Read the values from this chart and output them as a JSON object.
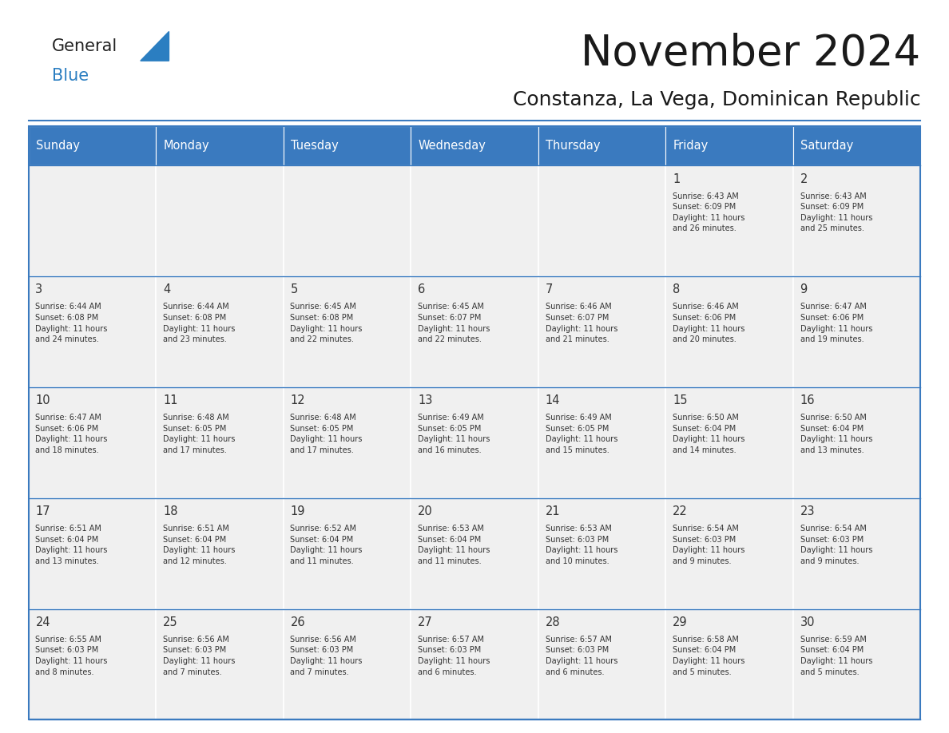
{
  "title": "November 2024",
  "subtitle": "Constanza, La Vega, Dominican Republic",
  "header_bg_color": "#3a7abf",
  "header_text_color": "#ffffff",
  "cell_bg_color": "#f0f0f0",
  "cell_text_color": "#333333",
  "day_num_color": "#333333",
  "grid_line_color": "#3a7abf",
  "background_color": "#ffffff",
  "days_of_week": [
    "Sunday",
    "Monday",
    "Tuesday",
    "Wednesday",
    "Thursday",
    "Friday",
    "Saturday"
  ],
  "logo_general_color": "#222222",
  "logo_blue_color": "#2b7ec1",
  "logo_triangle_color": "#2b7ec1",
  "weeks": [
    [
      {
        "day": "",
        "info": ""
      },
      {
        "day": "",
        "info": ""
      },
      {
        "day": "",
        "info": ""
      },
      {
        "day": "",
        "info": ""
      },
      {
        "day": "",
        "info": ""
      },
      {
        "day": "1",
        "info": "Sunrise: 6:43 AM\nSunset: 6:09 PM\nDaylight: 11 hours\nand 26 minutes."
      },
      {
        "day": "2",
        "info": "Sunrise: 6:43 AM\nSunset: 6:09 PM\nDaylight: 11 hours\nand 25 minutes."
      }
    ],
    [
      {
        "day": "3",
        "info": "Sunrise: 6:44 AM\nSunset: 6:08 PM\nDaylight: 11 hours\nand 24 minutes."
      },
      {
        "day": "4",
        "info": "Sunrise: 6:44 AM\nSunset: 6:08 PM\nDaylight: 11 hours\nand 23 minutes."
      },
      {
        "day": "5",
        "info": "Sunrise: 6:45 AM\nSunset: 6:08 PM\nDaylight: 11 hours\nand 22 minutes."
      },
      {
        "day": "6",
        "info": "Sunrise: 6:45 AM\nSunset: 6:07 PM\nDaylight: 11 hours\nand 22 minutes."
      },
      {
        "day": "7",
        "info": "Sunrise: 6:46 AM\nSunset: 6:07 PM\nDaylight: 11 hours\nand 21 minutes."
      },
      {
        "day": "8",
        "info": "Sunrise: 6:46 AM\nSunset: 6:06 PM\nDaylight: 11 hours\nand 20 minutes."
      },
      {
        "day": "9",
        "info": "Sunrise: 6:47 AM\nSunset: 6:06 PM\nDaylight: 11 hours\nand 19 minutes."
      }
    ],
    [
      {
        "day": "10",
        "info": "Sunrise: 6:47 AM\nSunset: 6:06 PM\nDaylight: 11 hours\nand 18 minutes."
      },
      {
        "day": "11",
        "info": "Sunrise: 6:48 AM\nSunset: 6:05 PM\nDaylight: 11 hours\nand 17 minutes."
      },
      {
        "day": "12",
        "info": "Sunrise: 6:48 AM\nSunset: 6:05 PM\nDaylight: 11 hours\nand 17 minutes."
      },
      {
        "day": "13",
        "info": "Sunrise: 6:49 AM\nSunset: 6:05 PM\nDaylight: 11 hours\nand 16 minutes."
      },
      {
        "day": "14",
        "info": "Sunrise: 6:49 AM\nSunset: 6:05 PM\nDaylight: 11 hours\nand 15 minutes."
      },
      {
        "day": "15",
        "info": "Sunrise: 6:50 AM\nSunset: 6:04 PM\nDaylight: 11 hours\nand 14 minutes."
      },
      {
        "day": "16",
        "info": "Sunrise: 6:50 AM\nSunset: 6:04 PM\nDaylight: 11 hours\nand 13 minutes."
      }
    ],
    [
      {
        "day": "17",
        "info": "Sunrise: 6:51 AM\nSunset: 6:04 PM\nDaylight: 11 hours\nand 13 minutes."
      },
      {
        "day": "18",
        "info": "Sunrise: 6:51 AM\nSunset: 6:04 PM\nDaylight: 11 hours\nand 12 minutes."
      },
      {
        "day": "19",
        "info": "Sunrise: 6:52 AM\nSunset: 6:04 PM\nDaylight: 11 hours\nand 11 minutes."
      },
      {
        "day": "20",
        "info": "Sunrise: 6:53 AM\nSunset: 6:04 PM\nDaylight: 11 hours\nand 11 minutes."
      },
      {
        "day": "21",
        "info": "Sunrise: 6:53 AM\nSunset: 6:03 PM\nDaylight: 11 hours\nand 10 minutes."
      },
      {
        "day": "22",
        "info": "Sunrise: 6:54 AM\nSunset: 6:03 PM\nDaylight: 11 hours\nand 9 minutes."
      },
      {
        "day": "23",
        "info": "Sunrise: 6:54 AM\nSunset: 6:03 PM\nDaylight: 11 hours\nand 9 minutes."
      }
    ],
    [
      {
        "day": "24",
        "info": "Sunrise: 6:55 AM\nSunset: 6:03 PM\nDaylight: 11 hours\nand 8 minutes."
      },
      {
        "day": "25",
        "info": "Sunrise: 6:56 AM\nSunset: 6:03 PM\nDaylight: 11 hours\nand 7 minutes."
      },
      {
        "day": "26",
        "info": "Sunrise: 6:56 AM\nSunset: 6:03 PM\nDaylight: 11 hours\nand 7 minutes."
      },
      {
        "day": "27",
        "info": "Sunrise: 6:57 AM\nSunset: 6:03 PM\nDaylight: 11 hours\nand 6 minutes."
      },
      {
        "day": "28",
        "info": "Sunrise: 6:57 AM\nSunset: 6:03 PM\nDaylight: 11 hours\nand 6 minutes."
      },
      {
        "day": "29",
        "info": "Sunrise: 6:58 AM\nSunset: 6:04 PM\nDaylight: 11 hours\nand 5 minutes."
      },
      {
        "day": "30",
        "info": "Sunrise: 6:59 AM\nSunset: 6:04 PM\nDaylight: 11 hours\nand 5 minutes."
      }
    ]
  ]
}
